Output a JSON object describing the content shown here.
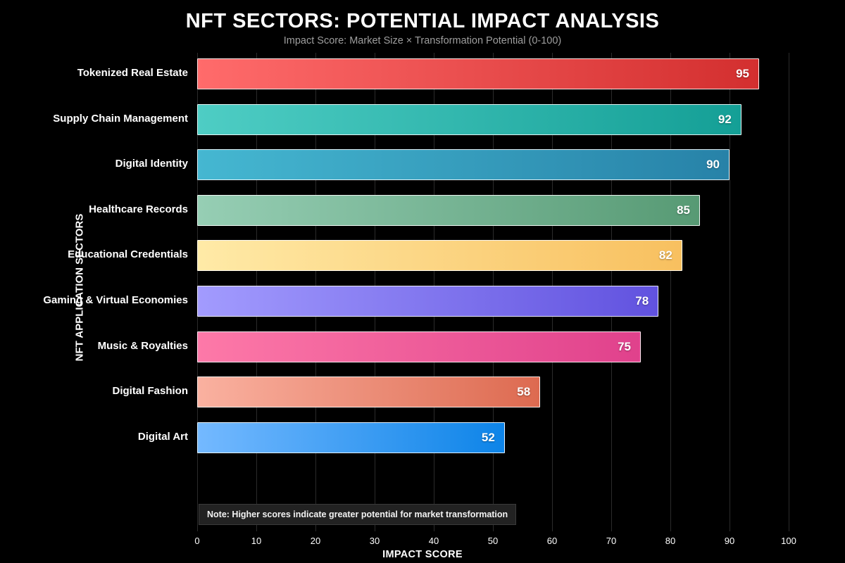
{
  "header": {
    "title": "NFT SECTORS: POTENTIAL IMPACT ANALYSIS",
    "subtitle": "Impact Score: Market Size × Transformation Potential (0-100)"
  },
  "axes": {
    "x_label": "IMPACT SCORE",
    "y_label": "NFT APPLICATION SECTORS",
    "x_ticks": [
      0,
      10,
      20,
      30,
      40,
      50,
      60,
      70,
      80,
      90,
      100
    ]
  },
  "note": {
    "text": "Note: Higher scores indicate greater potential for market transformation"
  },
  "chart_data": {
    "type": "bar",
    "orientation": "horizontal",
    "title": "NFT SECTORS: POTENTIAL IMPACT ANALYSIS",
    "subtitle": "Impact Score: Market Size × Transformation Potential (0-100)",
    "xlabel": "IMPACT SCORE",
    "ylabel": "NFT APPLICATION SECTORS",
    "xlim": [
      0,
      100
    ],
    "grid": true,
    "legend": false,
    "annotation": "Note: Higher scores indicate greater potential for market transformation",
    "categories": [
      "Tokenized Real Estate",
      "Supply Chain Management",
      "Digital Identity",
      "Healthcare Records",
      "Educational Credentials",
      "Gaming & Virtual Economies",
      "Music & Royalties",
      "Digital Fashion",
      "Digital Art"
    ],
    "values": [
      95,
      92,
      90,
      85,
      82,
      78,
      75,
      58,
      52
    ],
    "bar_gradients": [
      {
        "from": "#ff6b6b",
        "to": "#d32f2f"
      },
      {
        "from": "#4ecdc4",
        "to": "#149f96"
      },
      {
        "from": "#45b7d1",
        "to": "#2782a8"
      },
      {
        "from": "#96ceb4",
        "to": "#579a74"
      },
      {
        "from": "#ffeaa7",
        "to": "#f8c05f"
      },
      {
        "from": "#a29bfe",
        "to": "#6152df"
      },
      {
        "from": "#fd79a8",
        "to": "#e0418c"
      },
      {
        "from": "#fab1a0",
        "to": "#dd6a50"
      },
      {
        "from": "#74b9ff",
        "to": "#0d84e8"
      }
    ]
  },
  "style": {
    "background": "#000000",
    "text_color": "#ffffff",
    "subtitle_color": "#9e9e9e",
    "gridline_color": "#2b2b2b",
    "note_bg": "#222222",
    "bar_border": "rgba(255,255,255,0.85)"
  }
}
